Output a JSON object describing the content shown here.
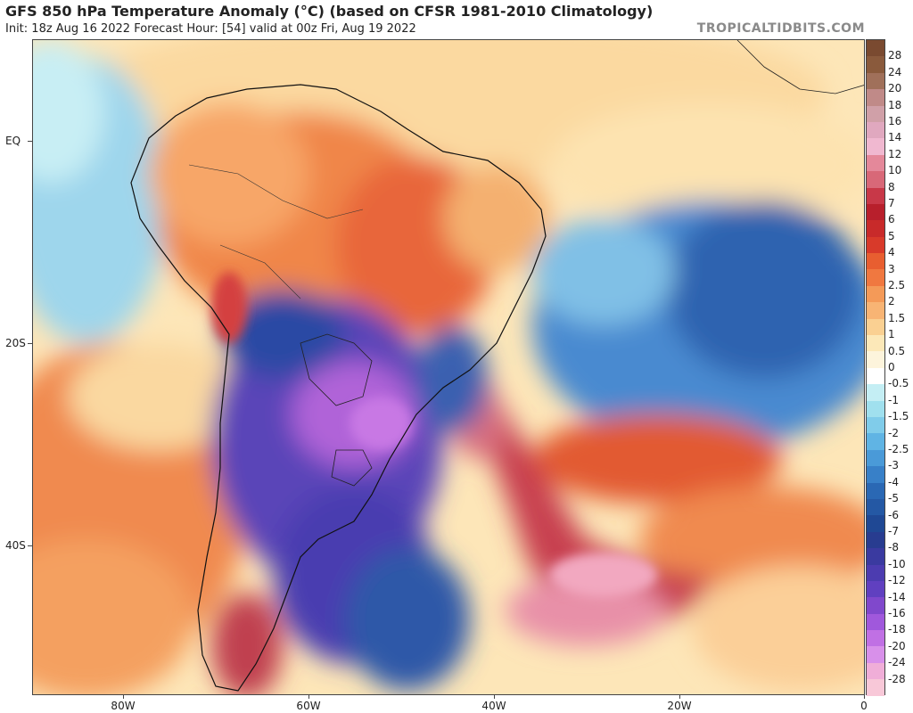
{
  "header": {
    "title": "GFS 850 hPa Temperature Anomaly (°C) (based on CFSR 1981-2010 Climatology)",
    "subtitle": "Init: 18z Aug 16 2022   Forecast Hour: [54]   valid at 00z Fri, Aug 19 2022",
    "brand": "TROPICALTIDBITS.COM"
  },
  "map": {
    "lat_labels": [
      "EQ",
      "20S",
      "40S"
    ],
    "lon_labels": [
      "80W",
      "60W",
      "40W",
      "20W",
      "0"
    ]
  },
  "colorbar": {
    "labels": [
      "28",
      "24",
      "20",
      "18",
      "16",
      "14",
      "12",
      "10",
      "8",
      "7",
      "6",
      "5",
      "4",
      "3",
      "2.5",
      "2",
      "1.5",
      "1",
      "0.5",
      "0",
      "-0.5",
      "-1",
      "-1.5",
      "-2",
      "-2.5",
      "-3",
      "-4",
      "-5",
      "-6",
      "-7",
      "-8",
      "-10",
      "-12",
      "-14",
      "-16",
      "-18",
      "-20",
      "-24",
      "-28"
    ],
    "colors": [
      "#8a5a3c",
      "#a0705a",
      "#c08a88",
      "#d0a0a8",
      "#e0a8bf",
      "#f0b8d0",
      "#e4889a",
      "#d86878",
      "#c83848",
      "#b81f2c",
      "#c82a2a",
      "#d83a2a",
      "#e85e30",
      "#f07840",
      "#f49a58",
      "#f8b474",
      "#fad092",
      "#fce8b8",
      "#fdf4dc",
      "#ffffff",
      "#c4eef4",
      "#a0e0ee",
      "#80ccea",
      "#60b4e4",
      "#4a9ad8",
      "#3880c8",
      "#2a68b4",
      "#2458a4",
      "#1f4894",
      "#283c90",
      "#3a3aa0",
      "#4c3cb0",
      "#6040c0",
      "#8048cc",
      "#a058dc",
      "#c070e4",
      "#d890ea",
      "#f0aed8",
      "#f8c8d8"
    ]
  }
}
